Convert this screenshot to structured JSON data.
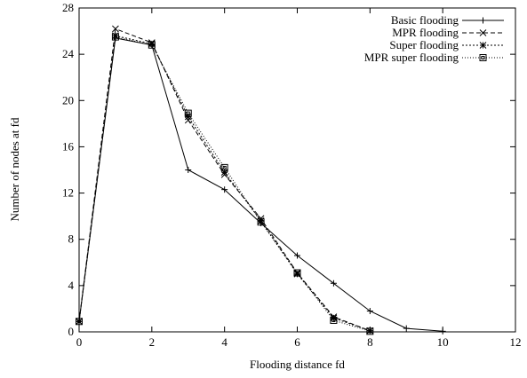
{
  "chart_data": {
    "type": "line",
    "xlabel": "Flooding distance fd",
    "ylabel": "Number of nodes at fd",
    "xlim": [
      0,
      12
    ],
    "ylim": [
      0,
      28
    ],
    "xticks": [
      "0",
      "2",
      "4",
      "6",
      "8",
      "10",
      "12"
    ],
    "yticks": [
      "0",
      "4",
      "8",
      "12",
      "16",
      "20",
      "24",
      "28"
    ],
    "grid": false,
    "legend_position": "top-right",
    "series": [
      {
        "name": "Basic flooding",
        "marker": "plus",
        "dash": "solid",
        "x": [
          0,
          1,
          2,
          3,
          4,
          5,
          6,
          7,
          8,
          9,
          10
        ],
        "y": [
          0.9,
          25.4,
          24.8,
          14.0,
          12.3,
          9.4,
          6.6,
          4.2,
          1.8,
          0.3,
          0.05
        ]
      },
      {
        "name": "MPR flooding",
        "marker": "x",
        "dash": "dashed",
        "x": [
          0,
          1,
          2,
          3,
          4,
          5,
          6,
          7,
          8
        ],
        "y": [
          0.9,
          26.2,
          25.0,
          18.3,
          13.6,
          9.8,
          5.1,
          1.3,
          0.1
        ]
      },
      {
        "name": "Super flooding",
        "marker": "star",
        "dash": "dotted",
        "x": [
          0,
          1,
          2,
          3,
          4,
          5,
          6,
          7,
          8
        ],
        "y": [
          0.9,
          25.6,
          24.9,
          18.6,
          13.8,
          9.6,
          5.0,
          1.2,
          0.1
        ]
      },
      {
        "name": "MPR super flooding",
        "marker": "square",
        "dash": "fine-dotted",
        "x": [
          0,
          1,
          2,
          3,
          4,
          5,
          6,
          7,
          8
        ],
        "y": [
          0.9,
          25.5,
          24.8,
          18.9,
          14.2,
          9.5,
          5.1,
          1.0,
          0.05
        ]
      }
    ]
  }
}
